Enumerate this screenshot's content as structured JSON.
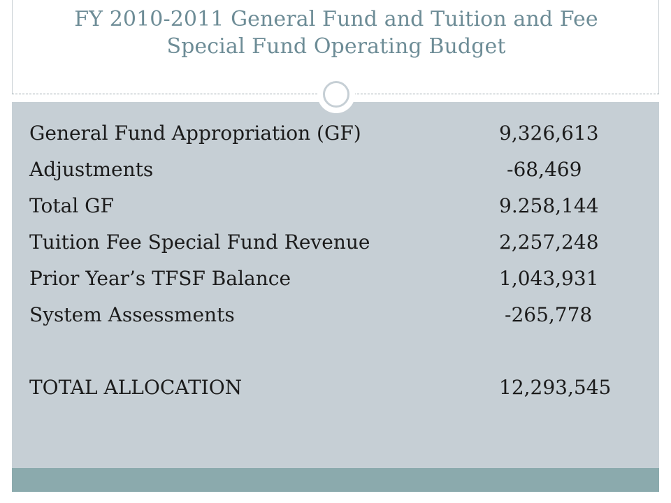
{
  "slide": {
    "title_line1": "FY 2010-2011 General Fund and Tuition and Fee",
    "title_line2": "Special Fund Operating Budget"
  },
  "budget": {
    "rows": [
      {
        "label": "General Fund Appropriation (GF)",
        "value": "9,326,613"
      },
      {
        "label": "Adjustments",
        "value": " -68,469"
      },
      {
        "label": "Total GF",
        "value": "9.258,144"
      },
      {
        "label": "Tuition Fee Special Fund Revenue",
        "value": "2,257,248"
      },
      {
        "label": "Prior Year’s TFSF Balance",
        "value": "1,043,931"
      },
      {
        "label": "System Assessments",
        "value": " -265,778"
      }
    ],
    "total": {
      "label": "TOTAL ALLOCATION",
      "value": "12,293,545"
    }
  },
  "colors": {
    "title_text": "#6d8c96",
    "body_background": "#c6cfd5",
    "footer_band": "#8baaad"
  }
}
